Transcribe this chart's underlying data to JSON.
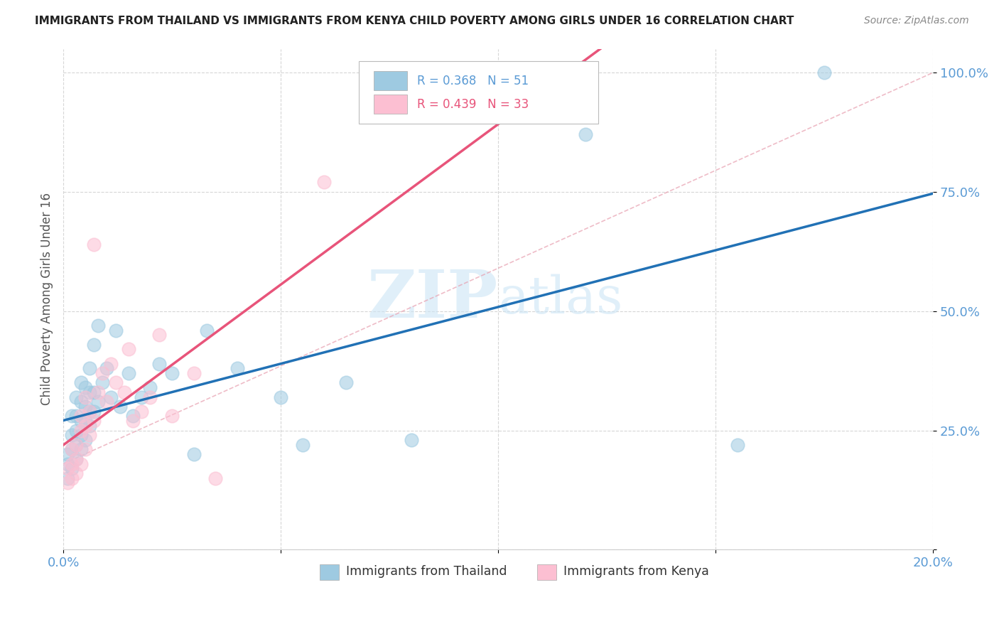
{
  "title": "IMMIGRANTS FROM THAILAND VS IMMIGRANTS FROM KENYA CHILD POVERTY AMONG GIRLS UNDER 16 CORRELATION CHART",
  "source": "Source: ZipAtlas.com",
  "ylabel": "Child Poverty Among Girls Under 16",
  "xlim": [
    0.0,
    0.2
  ],
  "ylim": [
    0.0,
    1.05
  ],
  "R_thailand": 0.368,
  "N_thailand": 51,
  "R_kenya": 0.439,
  "N_kenya": 33,
  "thailand_color": "#9ecae1",
  "kenya_color": "#fcbfd2",
  "trend_thailand_color": "#2171b5",
  "trend_kenya_color": "#e8547a",
  "ref_line_color": "#d9a0b0",
  "axis_color": "#5b9bd5",
  "grid_color": "#cccccc",
  "watermark_color": "#cce5f5",
  "thailand_x": [
    0.001,
    0.001,
    0.001,
    0.002,
    0.002,
    0.002,
    0.002,
    0.003,
    0.003,
    0.003,
    0.003,
    0.003,
    0.004,
    0.004,
    0.004,
    0.004,
    0.004,
    0.005,
    0.005,
    0.005,
    0.005,
    0.006,
    0.006,
    0.006,
    0.006,
    0.007,
    0.007,
    0.007,
    0.008,
    0.008,
    0.009,
    0.01,
    0.011,
    0.012,
    0.013,
    0.015,
    0.016,
    0.018,
    0.02,
    0.022,
    0.025,
    0.03,
    0.033,
    0.04,
    0.05,
    0.055,
    0.065,
    0.08,
    0.12,
    0.155,
    0.175
  ],
  "thailand_y": [
    0.15,
    0.18,
    0.2,
    0.17,
    0.21,
    0.24,
    0.28,
    0.19,
    0.22,
    0.25,
    0.28,
    0.32,
    0.21,
    0.24,
    0.27,
    0.31,
    0.35,
    0.23,
    0.27,
    0.3,
    0.34,
    0.26,
    0.29,
    0.33,
    0.38,
    0.29,
    0.33,
    0.43,
    0.31,
    0.47,
    0.35,
    0.38,
    0.32,
    0.46,
    0.3,
    0.37,
    0.28,
    0.32,
    0.34,
    0.39,
    0.37,
    0.2,
    0.46,
    0.38,
    0.32,
    0.22,
    0.35,
    0.23,
    0.87,
    0.22,
    1.0
  ],
  "kenya_x": [
    0.001,
    0.001,
    0.002,
    0.002,
    0.002,
    0.003,
    0.003,
    0.003,
    0.004,
    0.004,
    0.004,
    0.005,
    0.005,
    0.005,
    0.006,
    0.006,
    0.007,
    0.007,
    0.008,
    0.009,
    0.01,
    0.011,
    0.012,
    0.014,
    0.015,
    0.016,
    0.018,
    0.02,
    0.022,
    0.025,
    0.03,
    0.035,
    0.06
  ],
  "kenya_y": [
    0.14,
    0.17,
    0.15,
    0.18,
    0.21,
    0.16,
    0.19,
    0.22,
    0.18,
    0.25,
    0.28,
    0.21,
    0.26,
    0.32,
    0.24,
    0.29,
    0.27,
    0.64,
    0.33,
    0.37,
    0.31,
    0.39,
    0.35,
    0.33,
    0.42,
    0.27,
    0.29,
    0.32,
    0.45,
    0.28,
    0.37,
    0.15,
    0.77
  ]
}
